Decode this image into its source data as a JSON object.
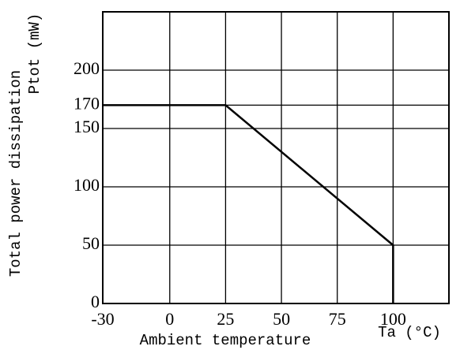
{
  "chart_data": {
    "type": "line",
    "xlabel": "Ambient temperature",
    "xunit": "Ta (°C)",
    "ylabel": "Total power dissipation",
    "yunit": "Ptot (mW)",
    "x": [
      -30,
      25,
      100,
      100
    ],
    "series": [
      {
        "color": "#000000",
        "values": [
          170,
          170,
          50,
          0
        ]
      }
    ],
    "xlim": [
      -30,
      125
    ],
    "xticks": [
      -30,
      0,
      25,
      50,
      75,
      100
    ],
    "ylim": [
      0,
      250
    ],
    "yticks": [
      0,
      50,
      100,
      150,
      170,
      200
    ],
    "grid": true
  }
}
